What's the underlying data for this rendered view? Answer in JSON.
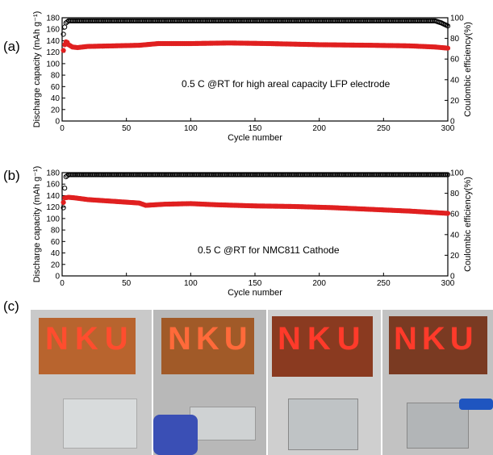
{
  "panel_labels": {
    "a": "(a)",
    "b": "(b)",
    "c": "(c)"
  },
  "chart_data": [
    {
      "type": "scatter",
      "xlabel": "Cycle number",
      "ylabel_left": "Discharge capacity (mAh g⁻¹)",
      "ylabel_right": "Coulombic efficiency(%)",
      "xlim": [
        0,
        300
      ],
      "ylim_left": [
        0,
        180
      ],
      "ylim_right": [
        0,
        100
      ],
      "xticks": [
        0,
        50,
        100,
        150,
        200,
        250,
        300
      ],
      "yticks_left": [
        0,
        20,
        40,
        60,
        80,
        100,
        120,
        140,
        160,
        180
      ],
      "yticks_right": [
        0,
        20,
        40,
        60,
        80,
        100
      ],
      "annotation": "0.5 C @RT for high areal capacity LFP electrode",
      "series": [
        {
          "axis": "left",
          "color": "#e02020",
          "points": [
            [
              1,
              123
            ],
            [
              2,
              133
            ],
            [
              3,
              138
            ],
            [
              4,
              137
            ],
            [
              5,
              133
            ],
            [
              8,
              129
            ],
            [
              12,
              128
            ],
            [
              20,
              130
            ],
            [
              40,
              131
            ],
            [
              60,
              132
            ],
            [
              75,
              135
            ],
            [
              100,
              135
            ],
            [
              130,
              136
            ],
            [
              160,
              135
            ],
            [
              200,
              133
            ],
            [
              240,
              132
            ],
            [
              270,
              131
            ],
            [
              290,
              129
            ],
            [
              300,
              127
            ]
          ]
        },
        {
          "axis": "right",
          "color": "#000000",
          "points": [
            [
              1,
              84
            ],
            [
              2,
              91
            ],
            [
              3,
              95
            ],
            [
              5,
              97
            ],
            [
              10,
              97
            ],
            [
              100,
              97
            ],
            [
              200,
              97
            ],
            [
              280,
              97
            ],
            [
              290,
              97
            ],
            [
              295,
              95
            ],
            [
              300,
              92
            ]
          ]
        }
      ]
    },
    {
      "type": "scatter",
      "xlabel": "Cycle number",
      "ylabel_left": "Discharge capacity (mAh g⁻¹)",
      "ylabel_right": "Coulombic efficiency(%)",
      "xlim": [
        0,
        300
      ],
      "ylim_left": [
        0,
        180
      ],
      "ylim_right": [
        0,
        100
      ],
      "xticks": [
        0,
        50,
        100,
        150,
        200,
        250,
        300
      ],
      "yticks_left": [
        0,
        20,
        40,
        60,
        80,
        100,
        120,
        140,
        160,
        180
      ],
      "yticks_right": [
        0,
        20,
        40,
        60,
        80,
        100
      ],
      "annotation": "0.5 C @RT for NMC811 Cathode",
      "series": [
        {
          "axis": "left",
          "color": "#e02020",
          "points": [
            [
              1,
              128
            ],
            [
              2,
              136
            ],
            [
              5,
              137
            ],
            [
              10,
              136
            ],
            [
              20,
              133
            ],
            [
              40,
              130
            ],
            [
              60,
              127
            ],
            [
              65,
              123
            ],
            [
              80,
              125
            ],
            [
              100,
              126
            ],
            [
              120,
              124
            ],
            [
              150,
              122
            ],
            [
              180,
              121
            ],
            [
              210,
              119
            ],
            [
              240,
              116
            ],
            [
              270,
              113
            ],
            [
              300,
              109
            ]
          ]
        },
        {
          "axis": "right",
          "color": "#000000",
          "points": [
            [
              1,
              66
            ],
            [
              2,
              85
            ],
            [
              3,
              96
            ],
            [
              5,
              98
            ],
            [
              50,
              98
            ],
            [
              100,
              98
            ],
            [
              150,
              98
            ],
            [
              200,
              98
            ],
            [
              250,
              98
            ],
            [
              300,
              98
            ]
          ]
        }
      ]
    }
  ],
  "photo_caption": "NKU"
}
